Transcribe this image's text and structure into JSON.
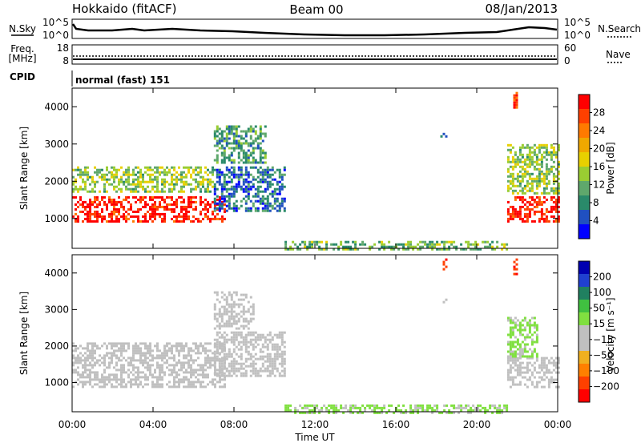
{
  "header": {
    "station": "Hokkaido (fitACF)",
    "beam": "Beam 00",
    "date": "08/Jan/2013"
  },
  "strip": {
    "nsky_label": "N.Sky",
    "nsky_ticks": [
      "10^5",
      "10^0"
    ],
    "nsearch_label": "N.Search",
    "nsearch_ticks": [
      "10^5",
      "10^0"
    ],
    "freq_label": "Freq.",
    "freq_unit": "[MHz]",
    "freq_ticks": [
      "18",
      "8"
    ],
    "nave_label": "Nave",
    "nave_ticks": [
      "60",
      "0"
    ],
    "cpid_label": "CPID",
    "cpid_value": "normal (fast) 151"
  },
  "colors": {
    "power_scale": [
      "#0000ff",
      "#2050c0",
      "#2a8a6a",
      "#5fa86c",
      "#9acd32",
      "#e8d000",
      "#f0a800",
      "#ff7a00",
      "#ff4000",
      "#ff0000"
    ],
    "velocity_scale": [
      "#0000b0",
      "#2040d0",
      "#208060",
      "#40c040",
      "#80e040",
      "#c0c0c0",
      "#c0c0c0",
      "#f0b020",
      "#ff8000",
      "#ff4000",
      "#ff0000"
    ],
    "velocity_dominant": "#c0c0c0"
  },
  "chart_data": [
    {
      "type": "heatmap",
      "panel": "power",
      "ylabel": "Slant Range [km]",
      "ylim": [
        200,
        4500
      ],
      "yticks": [
        "1000",
        "2000",
        "3000",
        "4000"
      ],
      "xticks": [
        "00:00",
        "04:00",
        "08:00",
        "12:00",
        "16:00",
        "20:00",
        "00:00"
      ],
      "colorbar_label": "Power [dB]",
      "colorbar_ticks": [
        "28",
        "24",
        "20",
        "16",
        "12",
        "8",
        "4"
      ],
      "colorbar_range": [
        0,
        32
      ],
      "regions": [
        {
          "t": [
            0,
            7.5
          ],
          "r": [
            900,
            1600
          ],
          "value": 30
        },
        {
          "t": [
            0,
            7.0
          ],
          "r": [
            1700,
            2400
          ],
          "value": 14
        },
        {
          "t": [
            7.0,
            10.5
          ],
          "r": [
            1200,
            2400
          ],
          "value": 6
        },
        {
          "t": [
            7.0,
            9.5
          ],
          "r": [
            2500,
            3500
          ],
          "value": 10
        },
        {
          "t": [
            10.5,
            21.5
          ],
          "r": [
            200,
            400
          ],
          "value": 12
        },
        {
          "t": [
            21.5,
            24
          ],
          "r": [
            900,
            1600
          ],
          "value": 30
        },
        {
          "t": [
            21.5,
            24
          ],
          "r": [
            1700,
            3000
          ],
          "value": 14
        },
        {
          "t": [
            18.2,
            18.5
          ],
          "r": [
            3200,
            3300
          ],
          "value": 6
        },
        {
          "t": [
            21.8,
            22.0
          ],
          "r": [
            4000,
            4400
          ],
          "value": 28
        }
      ]
    },
    {
      "type": "heatmap",
      "panel": "velocity",
      "ylabel": "Slant Range [km]",
      "xlabel": "Time UT",
      "ylim": [
        200,
        4500
      ],
      "yticks": [
        "1000",
        "2000",
        "3000",
        "4000"
      ],
      "xticks": [
        "00:00",
        "04:00",
        "08:00",
        "12:00",
        "16:00",
        "20:00",
        "00:00"
      ],
      "colorbar_label": "Velocity [m s⁻¹]",
      "colorbar_ticks": [
        "200",
        "100",
        "50",
        "15",
        "−15",
        "−50",
        "−100",
        "−200"
      ],
      "colorbar_range": [
        -250,
        250
      ],
      "regions": [
        {
          "t": [
            0,
            7.5
          ],
          "r": [
            900,
            2100
          ],
          "value": 0
        },
        {
          "t": [
            7.0,
            10.5
          ],
          "r": [
            1200,
            2400
          ],
          "value": 0
        },
        {
          "t": [
            7.0,
            9.0
          ],
          "r": [
            2500,
            3500
          ],
          "value": -40
        },
        {
          "t": [
            10.5,
            21.5
          ],
          "r": [
            200,
            400
          ],
          "value": 30
        },
        {
          "t": [
            21.5,
            24
          ],
          "r": [
            900,
            1700
          ],
          "value": 0
        },
        {
          "t": [
            21.5,
            23.0
          ],
          "r": [
            1700,
            2800
          ],
          "value": 30
        },
        {
          "t": [
            18.2,
            18.5
          ],
          "r": [
            3200,
            3300
          ],
          "value": -40
        },
        {
          "t": [
            18.2,
            18.5
          ],
          "r": [
            4100,
            4400
          ],
          "value": -200
        },
        {
          "t": [
            21.8,
            22.0
          ],
          "r": [
            4000,
            4400
          ],
          "value": -200
        }
      ]
    }
  ]
}
